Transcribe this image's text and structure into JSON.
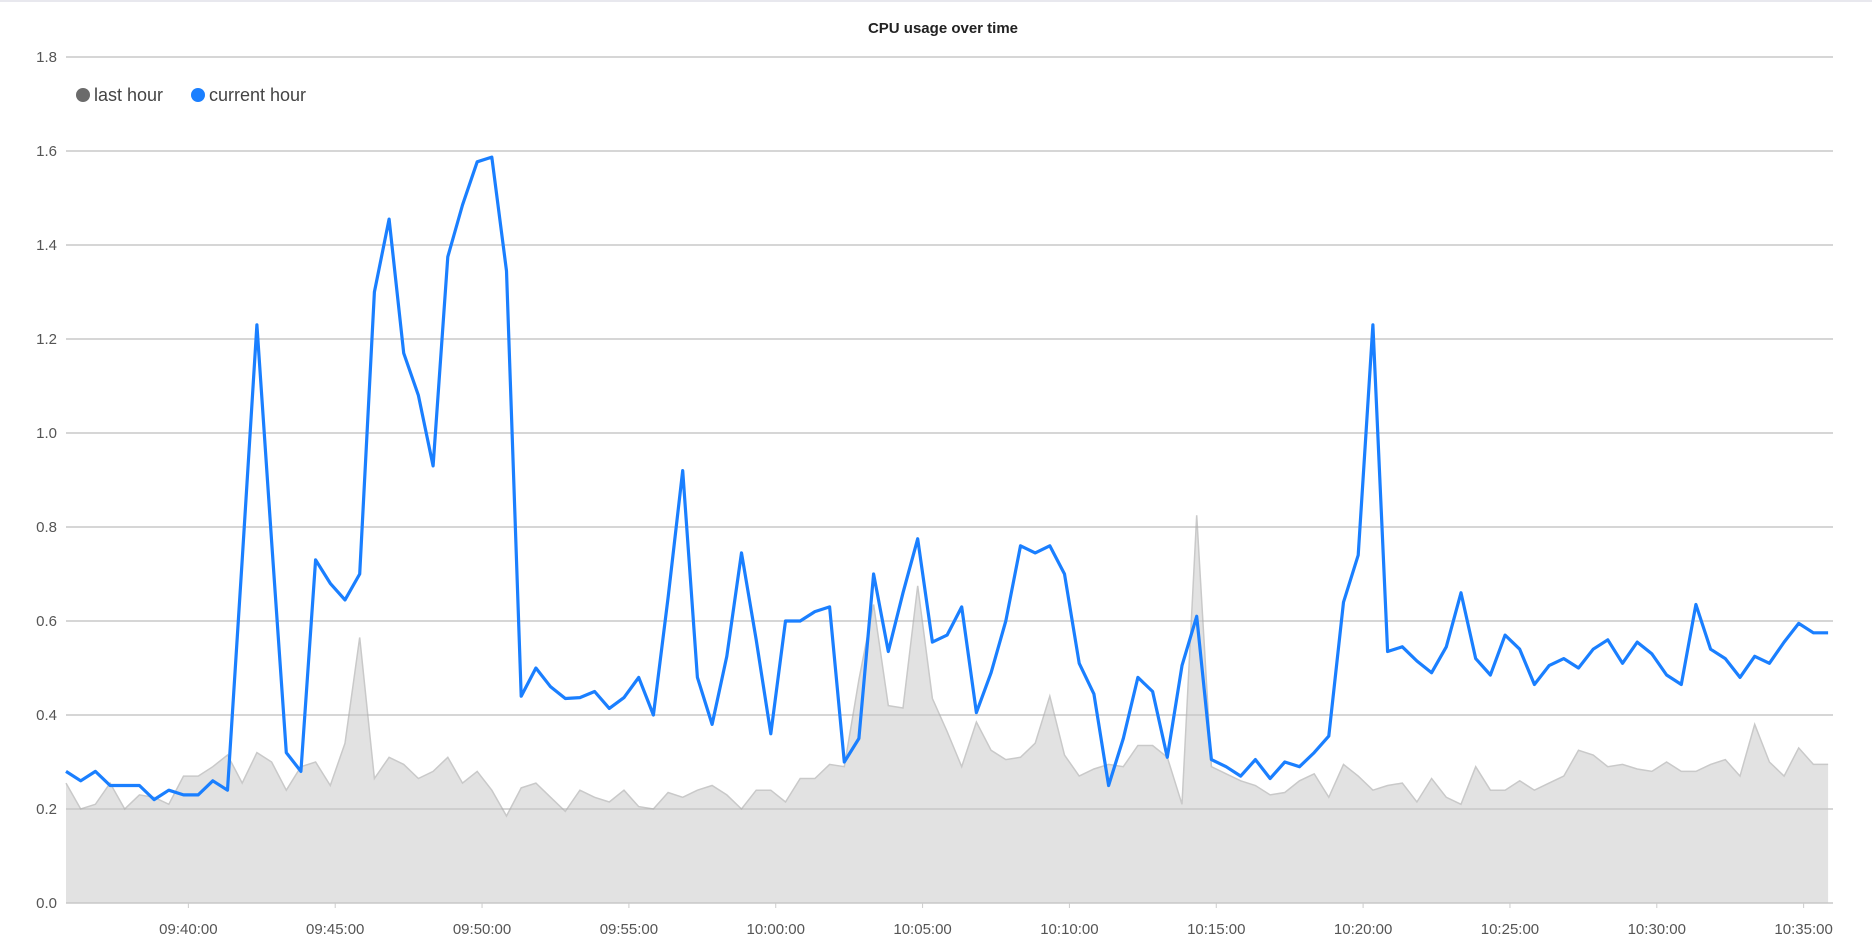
{
  "chart_data": {
    "type": "line",
    "title": "CPU usage over time",
    "xlabel": "",
    "ylabel": "",
    "ylim": [
      0,
      1.8
    ],
    "yticks": [
      "0.0",
      "0.2",
      "0.4",
      "0.6",
      "0.8",
      "1.0",
      "1.2",
      "1.4",
      "1.6",
      "1.8"
    ],
    "xlim": [
      "09:35:50",
      "10:36:00"
    ],
    "xticks": [
      "09:40:00",
      "09:45:00",
      "09:50:00",
      "09:55:00",
      "10:00:00",
      "10:05:00",
      "10:10:00",
      "10:15:00",
      "10:20:00",
      "10:25:00",
      "10:30:00",
      "10:35:00"
    ],
    "grid": true,
    "legend_position": "top-left",
    "x": [
      "09:35:50",
      "09:36:20",
      "09:36:50",
      "09:37:20",
      "09:37:50",
      "09:38:20",
      "09:38:50",
      "09:39:20",
      "09:39:50",
      "09:40:20",
      "09:40:50",
      "09:41:20",
      "09:41:50",
      "09:42:20",
      "09:42:50",
      "09:43:20",
      "09:43:50",
      "09:44:20",
      "09:44:50",
      "09:45:20",
      "09:45:50",
      "09:46:20",
      "09:46:50",
      "09:47:20",
      "09:47:50",
      "09:48:20",
      "09:48:50",
      "09:49:20",
      "09:49:50",
      "09:50:20",
      "09:50:50",
      "09:51:20",
      "09:51:50",
      "09:52:20",
      "09:52:50",
      "09:53:20",
      "09:53:50",
      "09:54:20",
      "09:54:50",
      "09:55:20",
      "09:55:50",
      "09:56:20",
      "09:56:50",
      "09:57:20",
      "09:57:50",
      "09:58:20",
      "09:58:50",
      "09:59:20",
      "09:59:50",
      "10:00:20",
      "10:00:50",
      "10:01:20",
      "10:01:50",
      "10:02:20",
      "10:02:50",
      "10:03:20",
      "10:03:50",
      "10:04:20",
      "10:04:50",
      "10:05:20",
      "10:05:50",
      "10:06:20",
      "10:06:50",
      "10:07:20",
      "10:07:50",
      "10:08:20",
      "10:08:50",
      "10:09:20",
      "10:09:50",
      "10:10:20",
      "10:10:50",
      "10:11:20",
      "10:11:50",
      "10:12:20",
      "10:12:50",
      "10:13:20",
      "10:13:50",
      "10:14:20",
      "10:14:50",
      "10:15:20",
      "10:15:50",
      "10:16:20",
      "10:16:50",
      "10:17:20",
      "10:17:50",
      "10:18:20",
      "10:18:50",
      "10:19:20",
      "10:19:50",
      "10:20:20",
      "10:20:50",
      "10:21:20",
      "10:21:50",
      "10:22:20",
      "10:22:50",
      "10:23:20",
      "10:23:50",
      "10:24:20",
      "10:24:50",
      "10:25:20",
      "10:25:50",
      "10:26:20",
      "10:26:50",
      "10:27:20",
      "10:27:50",
      "10:28:20",
      "10:28:50",
      "10:29:20",
      "10:29:50",
      "10:30:20",
      "10:30:50",
      "10:31:20",
      "10:31:50",
      "10:32:20",
      "10:32:50",
      "10:33:20",
      "10:33:50",
      "10:34:20",
      "10:34:50",
      "10:35:20",
      "10:35:50"
    ],
    "series": [
      {
        "name": "last hour",
        "color": "#6b6b6b",
        "fill": "#e2e2e2",
        "line": "#c9c9c9",
        "style": "area",
        "values": [
          0.255,
          0.2,
          0.21,
          0.255,
          0.2,
          0.23,
          0.225,
          0.21,
          0.27,
          0.27,
          0.29,
          0.315,
          0.255,
          0.32,
          0.3,
          0.24,
          0.29,
          0.3,
          0.25,
          0.34,
          0.565,
          0.265,
          0.31,
          0.295,
          0.265,
          0.28,
          0.31,
          0.255,
          0.28,
          0.24,
          0.185,
          0.245,
          0.255,
          0.225,
          0.195,
          0.24,
          0.225,
          0.215,
          0.24,
          0.205,
          0.2,
          0.235,
          0.225,
          0.24,
          0.25,
          0.23,
          0.2,
          0.24,
          0.24,
          0.215,
          0.265,
          0.265,
          0.295,
          0.29,
          0.475,
          0.635,
          0.42,
          0.415,
          0.675,
          0.435,
          0.365,
          0.29,
          0.385,
          0.325,
          0.305,
          0.31,
          0.34,
          0.44,
          0.315,
          0.27,
          0.285,
          0.295,
          0.29,
          0.335,
          0.335,
          0.31,
          0.21,
          0.825,
          0.29,
          0.275,
          0.26,
          0.25,
          0.23,
          0.235,
          0.26,
          0.275,
          0.225,
          0.295,
          0.27,
          0.24,
          0.25,
          0.255,
          0.215,
          0.265,
          0.225,
          0.21,
          0.29,
          0.24,
          0.24,
          0.26,
          0.24,
          0.255,
          0.27,
          0.325,
          0.315,
          0.29,
          0.295,
          0.285,
          0.28,
          0.3,
          0.28,
          0.28,
          0.295,
          0.305,
          0.27,
          0.38,
          0.3,
          0.27,
          0.33,
          0.295,
          0.295
        ]
      },
      {
        "name": "current hour",
        "color": "#1a7fff",
        "style": "line",
        "values": [
          0.28,
          0.26,
          0.28,
          0.25,
          0.25,
          0.25,
          0.22,
          0.24,
          0.23,
          0.23,
          0.26,
          0.24,
          0.73,
          1.23,
          0.77,
          0.32,
          0.28,
          0.73,
          0.68,
          0.645,
          0.7,
          1.3,
          1.455,
          1.17,
          1.08,
          0.93,
          1.375,
          1.485,
          1.577,
          1.587,
          1.345,
          0.44,
          0.5,
          0.46,
          0.435,
          0.437,
          0.45,
          0.414,
          0.437,
          0.48,
          0.4,
          0.65,
          0.92,
          0.48,
          0.38,
          0.525,
          0.745,
          0.56,
          0.36,
          0.6,
          0.6,
          0.62,
          0.63,
          0.3,
          0.35,
          0.7,
          0.535,
          0.66,
          0.775,
          0.555,
          0.57,
          0.63,
          0.405,
          0.49,
          0.6,
          0.76,
          0.745,
          0.76,
          0.7,
          0.51,
          0.445,
          0.25,
          0.35,
          0.48,
          0.45,
          0.31,
          0.505,
          0.61,
          0.305,
          0.29,
          0.27,
          0.305,
          0.265,
          0.3,
          0.29,
          0.32,
          0.355,
          0.64,
          0.74,
          1.23,
          0.535,
          0.545,
          0.515,
          0.49,
          0.545,
          0.66,
          0.52,
          0.485,
          0.57,
          0.54,
          0.465,
          0.505,
          0.52,
          0.5,
          0.54,
          0.56,
          0.51,
          0.555,
          0.53,
          0.485,
          0.465,
          0.635,
          0.54,
          0.52,
          0.48,
          0.525,
          0.51,
          0.555,
          0.595,
          0.575,
          0.575
        ]
      }
    ]
  }
}
